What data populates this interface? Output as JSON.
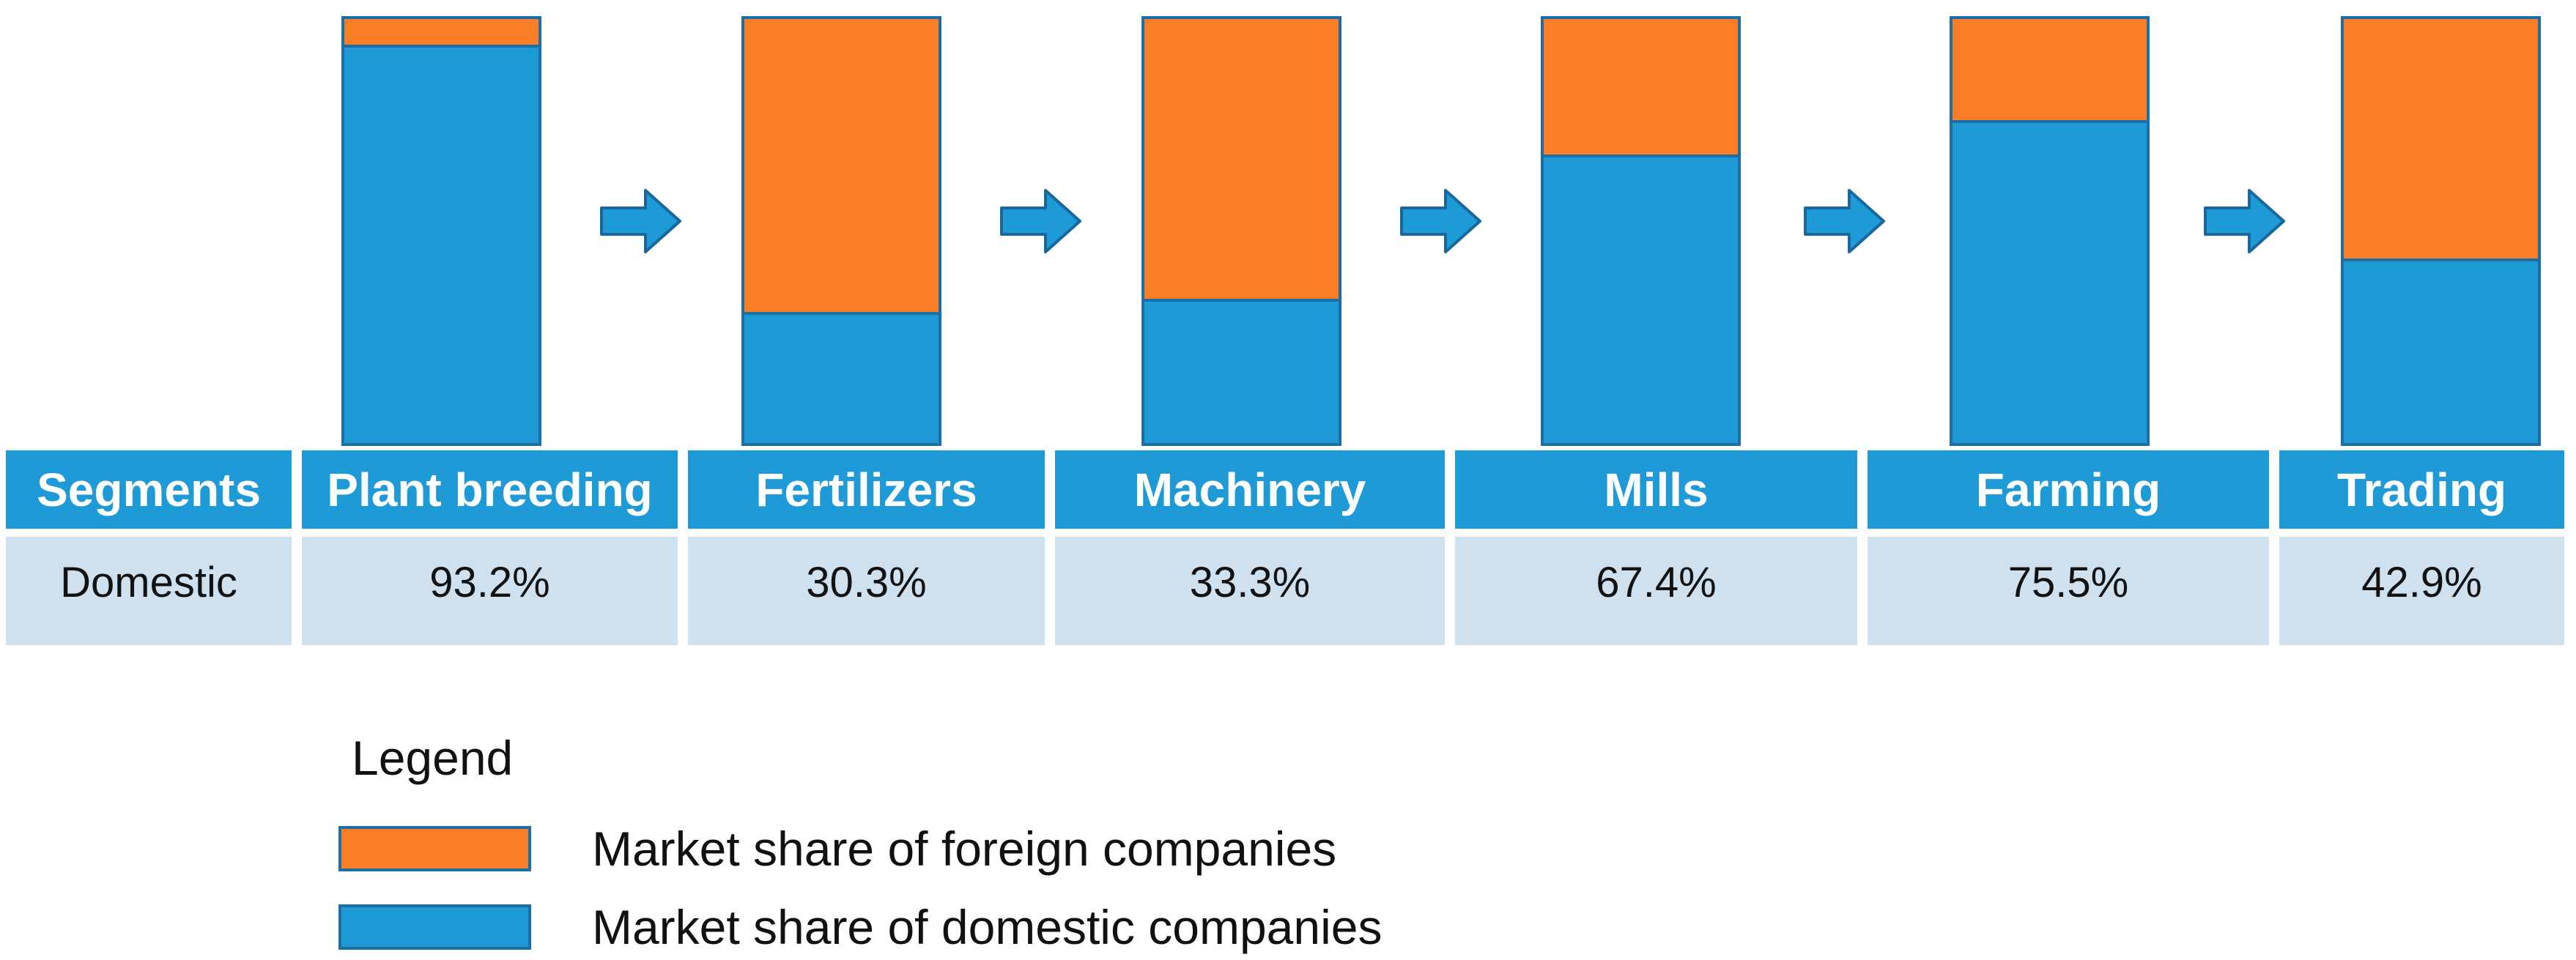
{
  "chart_data": {
    "type": "bar",
    "subtype": "stacked-percentage-columns",
    "categories": [
      "Plant breeding",
      "Fertilizers",
      "Machinery",
      "Mills",
      "Farming",
      "Trading"
    ],
    "series": [
      {
        "name": "Market share of foreign companies",
        "color": "#FB7D26",
        "values": [
          6.8,
          69.7,
          66.7,
          32.6,
          24.5,
          57.1
        ]
      },
      {
        "name": "Market share of domestic companies",
        "color": "#1E9AD6",
        "values": [
          93.2,
          30.3,
          33.3,
          67.4,
          75.5,
          42.9
        ]
      }
    ],
    "ylim": [
      0,
      100
    ],
    "grid": false,
    "axes_visible": false,
    "legend_position": "bottom-left",
    "flow_arrows_between_bars": true
  },
  "table": {
    "header_label": "Segments",
    "row_label": "Domestic",
    "columns": [
      "Plant breeding",
      "Fertilizers",
      "Machinery",
      "Mills",
      "Farming",
      "Trading"
    ],
    "values": [
      "93.2%",
      "30.3%",
      "33.3%",
      "67.4%",
      "75.5%",
      "42.9%"
    ]
  },
  "legend": {
    "title": "Legend",
    "items": [
      {
        "label": "Market share of foreign companies",
        "color": "#FB7D26"
      },
      {
        "label": "Market share of domestic companies",
        "color": "#1E9AD6"
      }
    ]
  },
  "colors": {
    "bar_blue": "#1E9AD6",
    "bar_orange": "#FB7D26",
    "bar_border": "#1C6EA4",
    "arrow_fill": "#1E9AD6",
    "arrow_border": "#19689B",
    "header_bg": "#1E9AD6",
    "header_text": "#FFFFFF",
    "row_bg": "#CFE0EF",
    "row_text": "#121212",
    "background": "#FFFFFF"
  }
}
